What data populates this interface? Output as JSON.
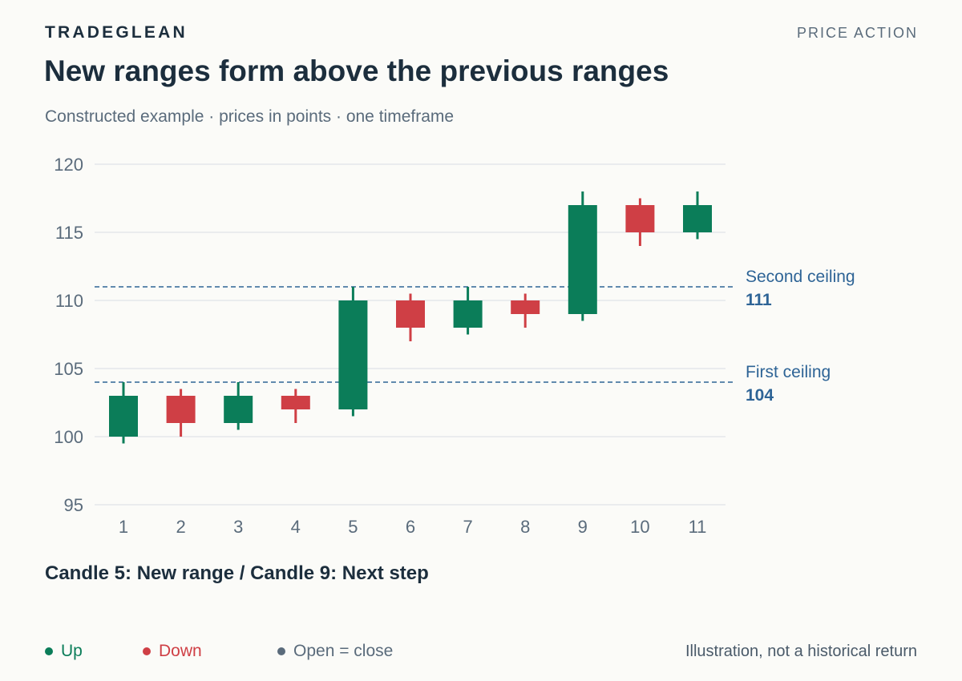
{
  "header": {
    "brand": "TRADEGLEAN",
    "section": "PRICE ACTION",
    "title": "New ranges form above the previous ranges",
    "subtitle": "Constructed example · prices in points · one timeframe"
  },
  "caption": "Candle 5: New range / Candle 9: Next step",
  "legend": {
    "up": "Up",
    "down": "Down",
    "flat": "Open = close"
  },
  "note": "Illustration, not a historical return",
  "colors": {
    "up": "#0b7d59",
    "down": "#cf3f45",
    "flat": "#5a6b7b",
    "ceiling": "#2e6496",
    "grid": "#dfe3e8",
    "tick": "#5a6b7b"
  },
  "chart_data": {
    "type": "candlestick",
    "x": [
      1,
      2,
      3,
      4,
      5,
      6,
      7,
      8,
      9,
      10,
      11
    ],
    "candles": [
      {
        "x": 1,
        "open": 100,
        "high": 104,
        "low": 99.5,
        "close": 103
      },
      {
        "x": 2,
        "open": 103,
        "high": 103.5,
        "low": 100,
        "close": 101
      },
      {
        "x": 3,
        "open": 101,
        "high": 104,
        "low": 100.5,
        "close": 103
      },
      {
        "x": 4,
        "open": 103,
        "high": 103.5,
        "low": 101,
        "close": 102
      },
      {
        "x": 5,
        "open": 102,
        "high": 111,
        "low": 101.5,
        "close": 110
      },
      {
        "x": 6,
        "open": 110,
        "high": 110.5,
        "low": 107,
        "close": 108
      },
      {
        "x": 7,
        "open": 108,
        "high": 111,
        "low": 107.5,
        "close": 110
      },
      {
        "x": 8,
        "open": 110,
        "high": 110.5,
        "low": 108,
        "close": 109
      },
      {
        "x": 9,
        "open": 109,
        "high": 118,
        "low": 108.5,
        "close": 117
      },
      {
        "x": 10,
        "open": 117,
        "high": 117.5,
        "low": 114,
        "close": 115
      },
      {
        "x": 11,
        "open": 115,
        "high": 118,
        "low": 114.5,
        "close": 117
      }
    ],
    "ylim": [
      95,
      120
    ],
    "yticks": [
      95,
      100,
      105,
      110,
      115,
      120
    ],
    "grid": true,
    "reference_lines": [
      {
        "label": "First ceiling",
        "value": 104,
        "value_label": "104"
      },
      {
        "label": "Second ceiling",
        "value": 111,
        "value_label": "111"
      }
    ]
  }
}
